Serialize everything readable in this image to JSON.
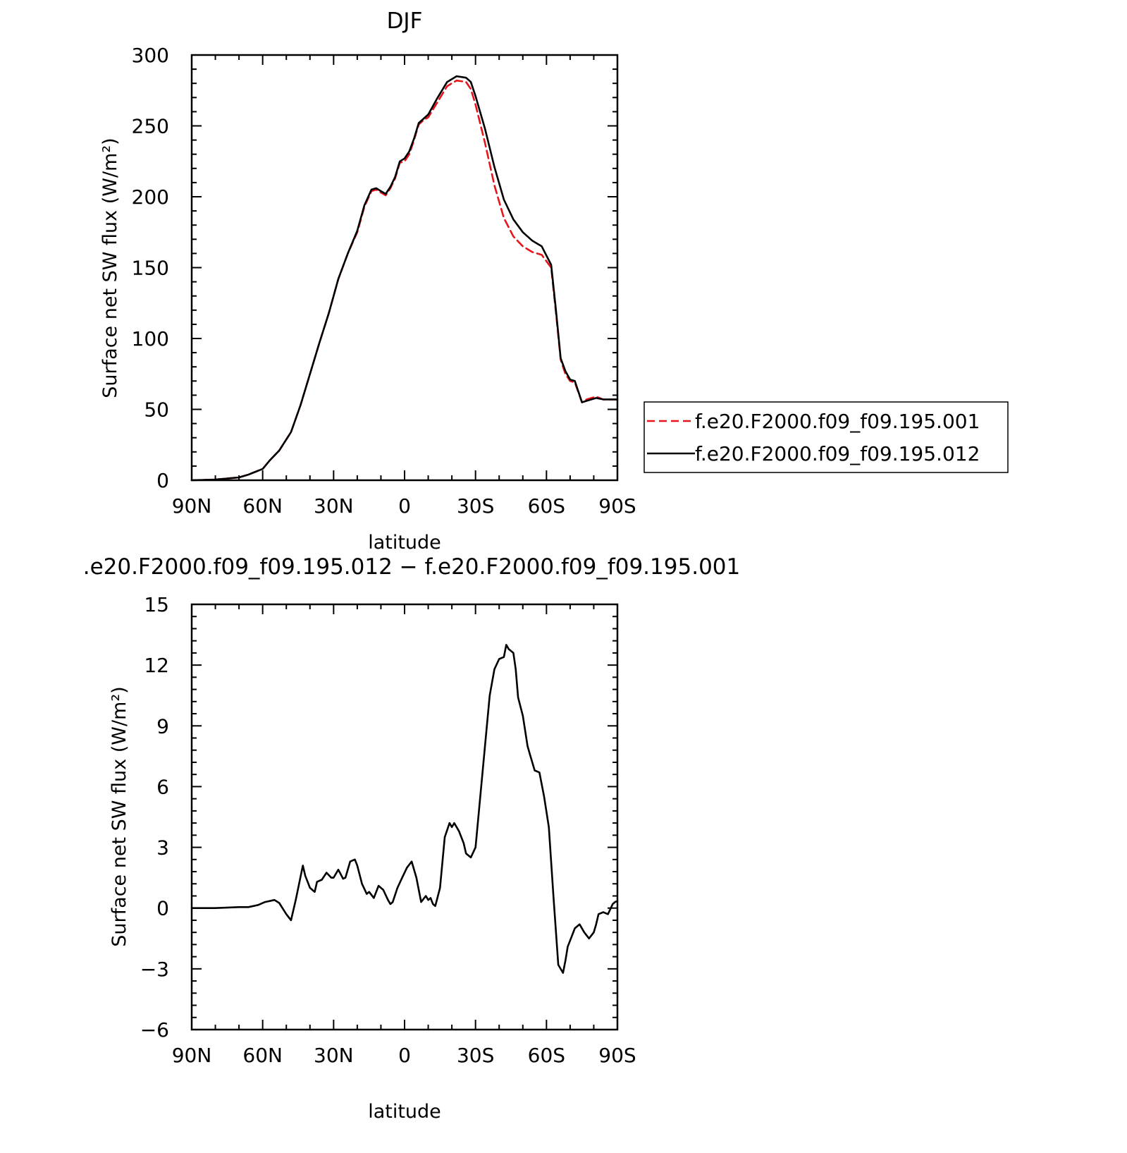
{
  "chart_data": [
    {
      "type": "line",
      "title": "DJF",
      "xlabel": "latitude",
      "ylabel": "Surface net SW flux (W/m²)",
      "xlim": [
        90,
        -90
      ],
      "ylim": [
        0,
        300
      ],
      "yticks": [
        0,
        50,
        100,
        150,
        200,
        250,
        300
      ],
      "xticks": [
        90,
        60,
        30,
        0,
        -30,
        -60,
        -90
      ],
      "xtick_labels": [
        "90N",
        "60N",
        "30N",
        "0",
        "30S",
        "60S",
        "90S"
      ],
      "ytick_labels": [
        "0",
        "50",
        "100",
        "150",
        "200",
        "250",
        "300"
      ],
      "legend_position": "right",
      "series": [
        {
          "name": "f.e20.F2000.f09_f09.195.001",
          "color": "#e8141c",
          "dash": "dashed",
          "x": [
            90,
            80,
            70,
            66,
            60,
            57,
            53,
            48,
            44,
            40,
            36,
            32,
            28,
            24,
            20,
            17,
            14,
            12,
            10,
            8,
            6,
            4,
            2,
            0,
            -2,
            -4,
            -6,
            -8,
            -10,
            -14,
            -18,
            -22,
            -26,
            -28,
            -30,
            -34,
            -38,
            -42,
            -46,
            -50,
            -54,
            -58,
            -62,
            -64,
            -66,
            -68,
            -70,
            -72,
            -75,
            -77,
            -79,
            -81,
            -84,
            -87,
            -90
          ],
          "y": [
            0,
            0.5,
            2,
            4,
            8,
            14,
            21,
            34,
            53,
            75,
            97,
            118,
            142,
            160,
            175,
            193,
            204,
            205,
            203,
            201,
            206,
            213,
            224,
            225,
            230,
            240,
            251,
            254,
            256,
            267,
            278,
            282,
            281,
            276,
            265,
            238,
            208,
            185,
            172,
            165,
            161,
            159,
            150,
            118,
            85,
            75,
            70,
            69,
            55,
            57,
            58,
            59,
            57,
            57,
            57
          ]
        },
        {
          "name": "f.e20.F2000.f09_f09.195.012",
          "color": "#000000",
          "dash": "solid",
          "x": [
            90,
            80,
            70,
            66,
            60,
            57,
            53,
            48,
            44,
            40,
            36,
            32,
            28,
            24,
            20,
            17,
            14,
            12,
            10,
            8,
            6,
            4,
            2,
            0,
            -2,
            -4,
            -6,
            -8,
            -10,
            -14,
            -18,
            -22,
            -26,
            -28,
            -30,
            -34,
            -38,
            -42,
            -46,
            -50,
            -54,
            -58,
            -62,
            -64,
            -66,
            -68,
            -70,
            -72,
            -75,
            -77,
            -79,
            -81,
            -84,
            -87,
            -90
          ],
          "y": [
            0,
            0.5,
            2,
            4,
            8,
            14,
            21,
            34,
            53,
            75,
            97,
            118,
            142,
            160,
            176,
            194,
            205,
            206,
            204,
            202,
            207,
            214,
            225,
            227,
            232,
            241,
            252,
            255,
            258,
            270,
            281,
            285,
            284,
            281,
            271,
            248,
            221,
            198,
            184,
            175,
            169,
            165,
            152,
            120,
            86,
            77,
            71,
            70,
            55,
            56,
            57,
            58,
            57,
            57,
            57
          ]
        }
      ]
    },
    {
      "type": "line",
      "title": ".e20.F2000.f09_f09.195.012 − f.e20.F2000.f09_f09.195.001",
      "xlabel": "latitude",
      "ylabel": "Surface net SW flux (W/m²)",
      "xlim": [
        90,
        -90
      ],
      "ylim": [
        -6,
        15
      ],
      "yticks": [
        -6,
        -3,
        0,
        3,
        6,
        9,
        12,
        15
      ],
      "xticks": [
        90,
        60,
        30,
        0,
        -30,
        -60,
        -90
      ],
      "xtick_labels": [
        "90N",
        "60N",
        "30N",
        "0",
        "30S",
        "60S",
        "90S"
      ],
      "ytick_labels": [
        "−6",
        "−3",
        "0",
        "3",
        "6",
        "9",
        "12",
        "15"
      ],
      "series": [
        {
          "color": "#000000",
          "dash": "solid",
          "x": [
            90,
            80,
            70,
            66,
            62,
            59,
            57,
            55,
            53,
            50,
            48,
            46,
            43,
            42,
            40,
            38,
            37,
            35,
            33,
            31,
            30,
            28,
            26,
            25,
            23,
            21,
            20,
            18,
            16,
            15,
            13,
            11,
            9,
            7,
            6,
            5,
            3,
            1,
            -1,
            -3,
            -5,
            -7,
            -9,
            -10,
            -11,
            -12,
            -13,
            -15,
            -17,
            -19,
            -20,
            -21,
            -23,
            -25,
            -26,
            -28,
            -30,
            -32,
            -34,
            -36,
            -38,
            -40,
            -42,
            -43,
            -44,
            -46,
            -47,
            -48,
            -50,
            -52,
            -53,
            -55,
            -57,
            -59,
            -61,
            -63,
            -65,
            -67,
            -68,
            -69,
            -70,
            -72,
            -74,
            -76,
            -78,
            -80,
            -81,
            -82,
            -84,
            -86,
            -88,
            -89,
            -90
          ],
          "y": [
            0,
            0,
            0.05,
            0.05,
            0.15,
            0.3,
            0.35,
            0.4,
            0.25,
            -0.3,
            -0.6,
            0.4,
            2.1,
            1.6,
            1.0,
            0.8,
            1.3,
            1.4,
            1.75,
            1.5,
            1.5,
            1.9,
            1.45,
            1.5,
            2.3,
            2.4,
            2.1,
            1.2,
            0.7,
            0.8,
            0.5,
            1.1,
            0.9,
            0.4,
            0.2,
            0.3,
            1.0,
            1.5,
            2.0,
            2.3,
            1.5,
            0.3,
            0.6,
            0.4,
            0.5,
            0.2,
            0.1,
            1.0,
            3.5,
            4.2,
            4.0,
            4.2,
            3.8,
            3.2,
            2.7,
            2.5,
            3.0,
            5.5,
            8.0,
            10.5,
            11.8,
            12.3,
            12.4,
            13.0,
            12.8,
            12.6,
            11.8,
            10.4,
            9.5,
            8.0,
            7.6,
            6.8,
            6.7,
            5.5,
            4.0,
            0.5,
            -2.8,
            -3.2,
            -2.6,
            -1.9,
            -1.6,
            -1.0,
            -0.8,
            -1.2,
            -1.5,
            -1.2,
            -0.8,
            -0.3,
            -0.2,
            -0.3,
            0.2,
            0.3,
            0.35
          ]
        }
      ]
    }
  ]
}
